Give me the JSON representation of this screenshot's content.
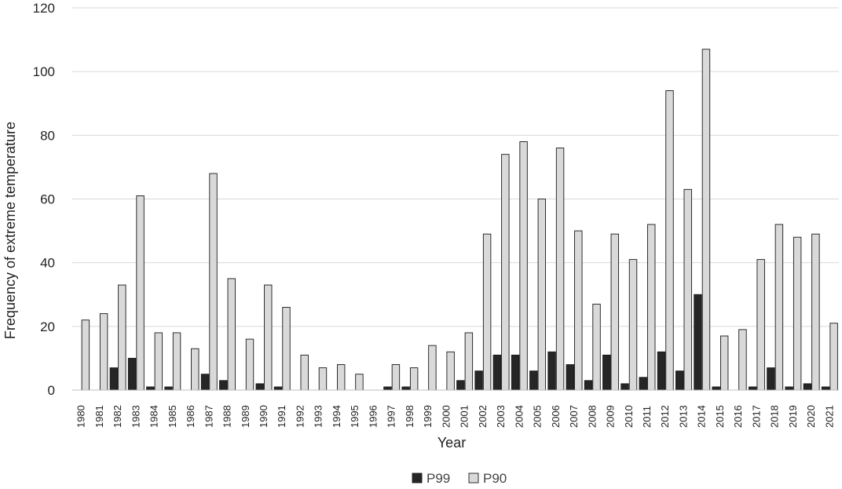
{
  "chart_data": {
    "type": "bar",
    "xlabel": "Year",
    "ylabel": "Frequency of extreme temperature",
    "ylim": [
      0,
      120
    ],
    "yticks": [
      0,
      20,
      40,
      60,
      80,
      100,
      120
    ],
    "grid": "horizontal",
    "legend_position": "bottom",
    "categories": [
      "1980",
      "1981",
      "1982",
      "1983",
      "1984",
      "1985",
      "1986",
      "1987",
      "1988",
      "1989",
      "1990",
      "1991",
      "1992",
      "1993",
      "1994",
      "1995",
      "1996",
      "1997",
      "1998",
      "1999",
      "2000",
      "2001",
      "2002",
      "2003",
      "2004",
      "2005",
      "2006",
      "2007",
      "2008",
      "2009",
      "2010",
      "2011",
      "2012",
      "2013",
      "2014",
      "2015",
      "2016",
      "2017",
      "2018",
      "2019",
      "2020",
      "2021"
    ],
    "series": [
      {
        "name": "P99",
        "color": "#262626",
        "values": [
          0,
          0,
          7,
          10,
          1,
          1,
          0,
          5,
          3,
          0,
          2,
          1,
          0,
          0,
          0,
          0,
          0,
          1,
          1,
          0,
          0,
          3,
          6,
          11,
          11,
          6,
          12,
          8,
          3,
          11,
          2,
          4,
          12,
          6,
          30,
          1,
          0,
          1,
          7,
          1,
          2,
          1
        ]
      },
      {
        "name": "P90",
        "color": "#d9d9d9",
        "values": [
          22,
          24,
          33,
          61,
          18,
          18,
          13,
          68,
          35,
          16,
          33,
          26,
          11,
          7,
          8,
          5,
          0,
          8,
          7,
          14,
          12,
          18,
          49,
          74,
          78,
          60,
          76,
          50,
          27,
          49,
          41,
          52,
          94,
          63,
          107,
          17,
          19,
          41,
          52,
          48,
          49,
          21
        ]
      }
    ]
  }
}
